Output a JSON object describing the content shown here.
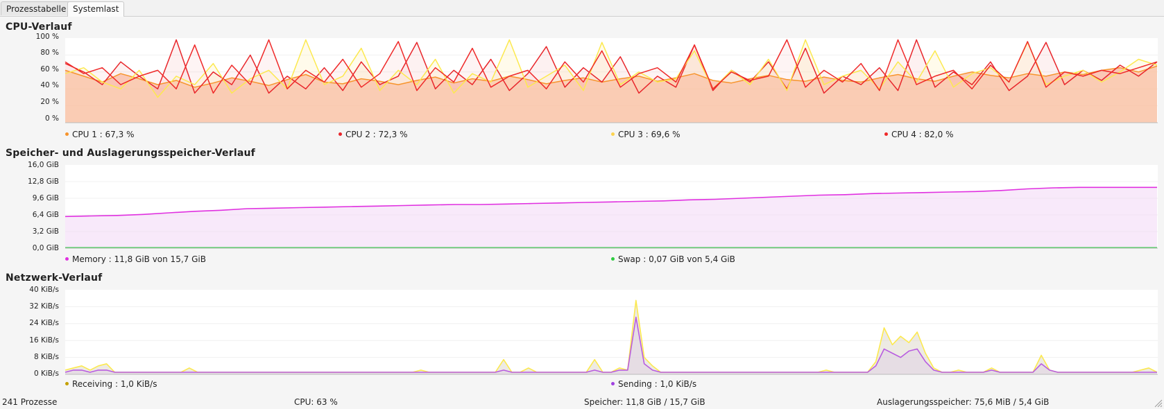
{
  "tabs": [
    {
      "label": "Prozesstabelle",
      "active": false
    },
    {
      "label": "Systemlast",
      "active": true
    }
  ],
  "colors": {
    "cpu1": "#f7942c",
    "cpu2": "#e8262b",
    "cpu3": "#fce94f",
    "cpu4": "#ef2929",
    "memory": "#e030e0",
    "swap": "#2ecc40",
    "receiving": "#c4a000",
    "sending": "#a040e0",
    "net_recv_line": "#fce94f",
    "net_send_line": "#b85ce0"
  },
  "cpu": {
    "title": "CPU-Verlauf",
    "y_ticks": [
      "100 %",
      "80 %",
      "60 %",
      "40 %",
      "20 %",
      "0 %"
    ],
    "legend": [
      {
        "name": "CPU 1",
        "value": "67,3 %",
        "color_key": "cpu1"
      },
      {
        "name": "CPU 2",
        "value": "72,3 %",
        "color_key": "cpu2"
      },
      {
        "name": "CPU 3",
        "value": "69,6 %",
        "color_key": "cpu3"
      },
      {
        "name": "CPU 4",
        "value": "82,0 %",
        "color_key": "cpu4"
      }
    ]
  },
  "memory": {
    "title": "Speicher- und Auslagerungsspeicher-Verlauf",
    "y_ticks": [
      "16,0 GiB",
      "12,8 GiB",
      "9,6 GiB",
      "6,4 GiB",
      "3,2 GiB",
      "0,0 GiB"
    ],
    "legend": [
      {
        "name": "Memory",
        "value": "11,8 GiB von 15,7 GiB",
        "color_key": "memory"
      },
      {
        "name": "Swap",
        "value": "0,07 GiB von 5,4 GiB",
        "color_key": "swap"
      }
    ]
  },
  "network": {
    "title": "Netzwerk-Verlauf",
    "y_ticks": [
      "40 KiB/s",
      "32 KiB/s",
      "24 KiB/s",
      "16 KiB/s",
      "8 KiB/s",
      "0 KiB/s"
    ],
    "legend": [
      {
        "name": "Receiving",
        "value": "1,0 KiB/s",
        "color_key": "receiving"
      },
      {
        "name": "Sending",
        "value": "1,0 KiB/s",
        "color_key": "sending"
      }
    ]
  },
  "status": {
    "processes": "241 Prozesse",
    "cpu": "CPU: 63 %",
    "memory": "Speicher: 11,8 GiB / 15,7 GiB",
    "swap": "Auslagerungsspeicher: 75,6 MiB / 5,4 GiB"
  },
  "chart_data": [
    {
      "type": "area",
      "title": "CPU-Verlauf",
      "ylim": [
        0,
        100
      ],
      "unit": "%",
      "series": [
        {
          "name": "CPU 1",
          "current": 67.3,
          "values": [
            62,
            55,
            48,
            58,
            52,
            45,
            50,
            42,
            47,
            53,
            49,
            44,
            51,
            57,
            48,
            46,
            52,
            49,
            45,
            50,
            54,
            47,
            52,
            49,
            55,
            51,
            46,
            50,
            53,
            48,
            52,
            55,
            49,
            53,
            58,
            50,
            47,
            52,
            56,
            51,
            49,
            54,
            50,
            48,
            53,
            57,
            52,
            49,
            55,
            60,
            56,
            53,
            58,
            55,
            60,
            57,
            62,
            65,
            60,
            67
          ]
        },
        {
          "name": "CPU 2",
          "current": 72.3,
          "values": [
            70,
            60,
            45,
            72,
            55,
            40,
            98,
            35,
            60,
            45,
            80,
            35,
            55,
            40,
            65,
            38,
            72,
            45,
            55,
            95,
            40,
            62,
            45,
            75,
            38,
            58,
            90,
            42,
            65,
            48,
            78,
            35,
            55,
            42,
            92,
            38,
            62,
            48,
            72,
            40,
            88,
            35,
            55,
            45,
            65,
            38,
            98,
            42,
            60,
            45,
            72,
            38,
            55,
            95,
            45,
            62,
            50,
            68,
            55,
            72
          ]
        },
        {
          "name": "CPU 3",
          "current": 69.6,
          "values": [
            58,
            65,
            48,
            40,
            62,
            30,
            55,
            45,
            70,
            35,
            52,
            62,
            40,
            98,
            45,
            55,
            88,
            38,
            62,
            45,
            75,
            35,
            58,
            48,
            98,
            42,
            55,
            68,
            38,
            95,
            45,
            60,
            48,
            52,
            85,
            40,
            62,
            45,
            75,
            38,
            98,
            45,
            55,
            62,
            40,
            72,
            48,
            85,
            42,
            58,
            65,
            48,
            95,
            45,
            55,
            62,
            48,
            60,
            75,
            68
          ]
        },
        {
          "name": "CPU 4",
          "current": 82.0,
          "values": [
            72,
            58,
            65,
            45,
            55,
            62,
            40,
            92,
            35,
            68,
            45,
            98,
            40,
            62,
            48,
            75,
            42,
            58,
            96,
            38,
            65,
            48,
            88,
            42,
            55,
            62,
            40,
            72,
            48,
            85,
            42,
            58,
            65,
            48,
            92,
            40,
            60,
            50,
            55,
            98,
            42,
            62,
            48,
            70,
            38,
            98,
            45,
            55,
            62,
            40,
            68,
            48,
            96,
            42,
            60,
            55,
            62,
            58,
            65,
            72
          ]
        }
      ]
    },
    {
      "type": "area",
      "title": "Speicher- und Auslagerungsspeicher-Verlauf",
      "ylim": [
        0,
        16
      ],
      "unit": "GiB",
      "series": [
        {
          "name": "Memory",
          "current": 11.8,
          "values": [
            6.1,
            6.2,
            6.3,
            6.5,
            6.8,
            7.1,
            7.3,
            7.6,
            7.7,
            7.8,
            7.9,
            8.0,
            8.1,
            8.2,
            8.3,
            8.4,
            8.4,
            8.5,
            8.6,
            8.7,
            8.8,
            8.9,
            9.0,
            9.1,
            9.3,
            9.4,
            9.6,
            9.8,
            10.0,
            10.2,
            10.3,
            10.5,
            10.6,
            10.7,
            10.8,
            10.9,
            11.1,
            11.4,
            11.6,
            11.7,
            11.7,
            11.7,
            11.7
          ]
        },
        {
          "name": "Swap",
          "current": 0.07,
          "values": [
            0.07,
            0.07
          ]
        }
      ]
    },
    {
      "type": "area",
      "title": "Netzwerk-Verlauf",
      "ylim": [
        0,
        40
      ],
      "unit": "KiB/s",
      "series": [
        {
          "name": "Receiving",
          "current": 1.0,
          "values": [
            2,
            3,
            4,
            2,
            4,
            5,
            1,
            1,
            1,
            1,
            1,
            1,
            1,
            1,
            1,
            3,
            1,
            1,
            1,
            1,
            1,
            1,
            1,
            1,
            1,
            1,
            1,
            1,
            1,
            1,
            1,
            1,
            1,
            1,
            1,
            1,
            1,
            1,
            1,
            1,
            1,
            1,
            1,
            2,
            1,
            1,
            1,
            1,
            1,
            1,
            1,
            1,
            1,
            7,
            1,
            1,
            3,
            1,
            1,
            1,
            1,
            1,
            1,
            1,
            7,
            1,
            1,
            3,
            2,
            35,
            8,
            4,
            1,
            1,
            1,
            1,
            1,
            1,
            1,
            1,
            1,
            1,
            1,
            1,
            1,
            1,
            1,
            1,
            1,
            1,
            1,
            1,
            2,
            1,
            1,
            1,
            1,
            1,
            6,
            22,
            14,
            18,
            15,
            20,
            10,
            3,
            1,
            1,
            2,
            1,
            1,
            1,
            3,
            1,
            1,
            1,
            1,
            1,
            9,
            2,
            1,
            1,
            1,
            1,
            1,
            1,
            1,
            1,
            1,
            1,
            2,
            3,
            1
          ]
        },
        {
          "name": "Sending",
          "current": 1.0,
          "values": [
            1,
            2,
            2,
            1,
            2,
            2,
            1,
            1,
            1,
            1,
            1,
            1,
            1,
            1,
            1,
            1,
            1,
            1,
            1,
            1,
            1,
            1,
            1,
            1,
            1,
            1,
            1,
            1,
            1,
            1,
            1,
            1,
            1,
            1,
            1,
            1,
            1,
            1,
            1,
            1,
            1,
            1,
            1,
            1,
            1,
            1,
            1,
            1,
            1,
            1,
            1,
            1,
            1,
            2,
            1,
            1,
            1,
            1,
            1,
            1,
            1,
            1,
            1,
            1,
            2,
            1,
            1,
            2,
            2,
            27,
            5,
            2,
            1,
            1,
            1,
            1,
            1,
            1,
            1,
            1,
            1,
            1,
            1,
            1,
            1,
            1,
            1,
            1,
            1,
            1,
            1,
            1,
            1,
            1,
            1,
            1,
            1,
            1,
            4,
            12,
            10,
            8,
            11,
            12,
            6,
            2,
            1,
            1,
            1,
            1,
            1,
            1,
            2,
            1,
            1,
            1,
            1,
            1,
            5,
            2,
            1,
            1,
            1,
            1,
            1,
            1,
            1,
            1,
            1,
            1,
            1,
            1,
            1
          ]
        }
      ]
    }
  ]
}
